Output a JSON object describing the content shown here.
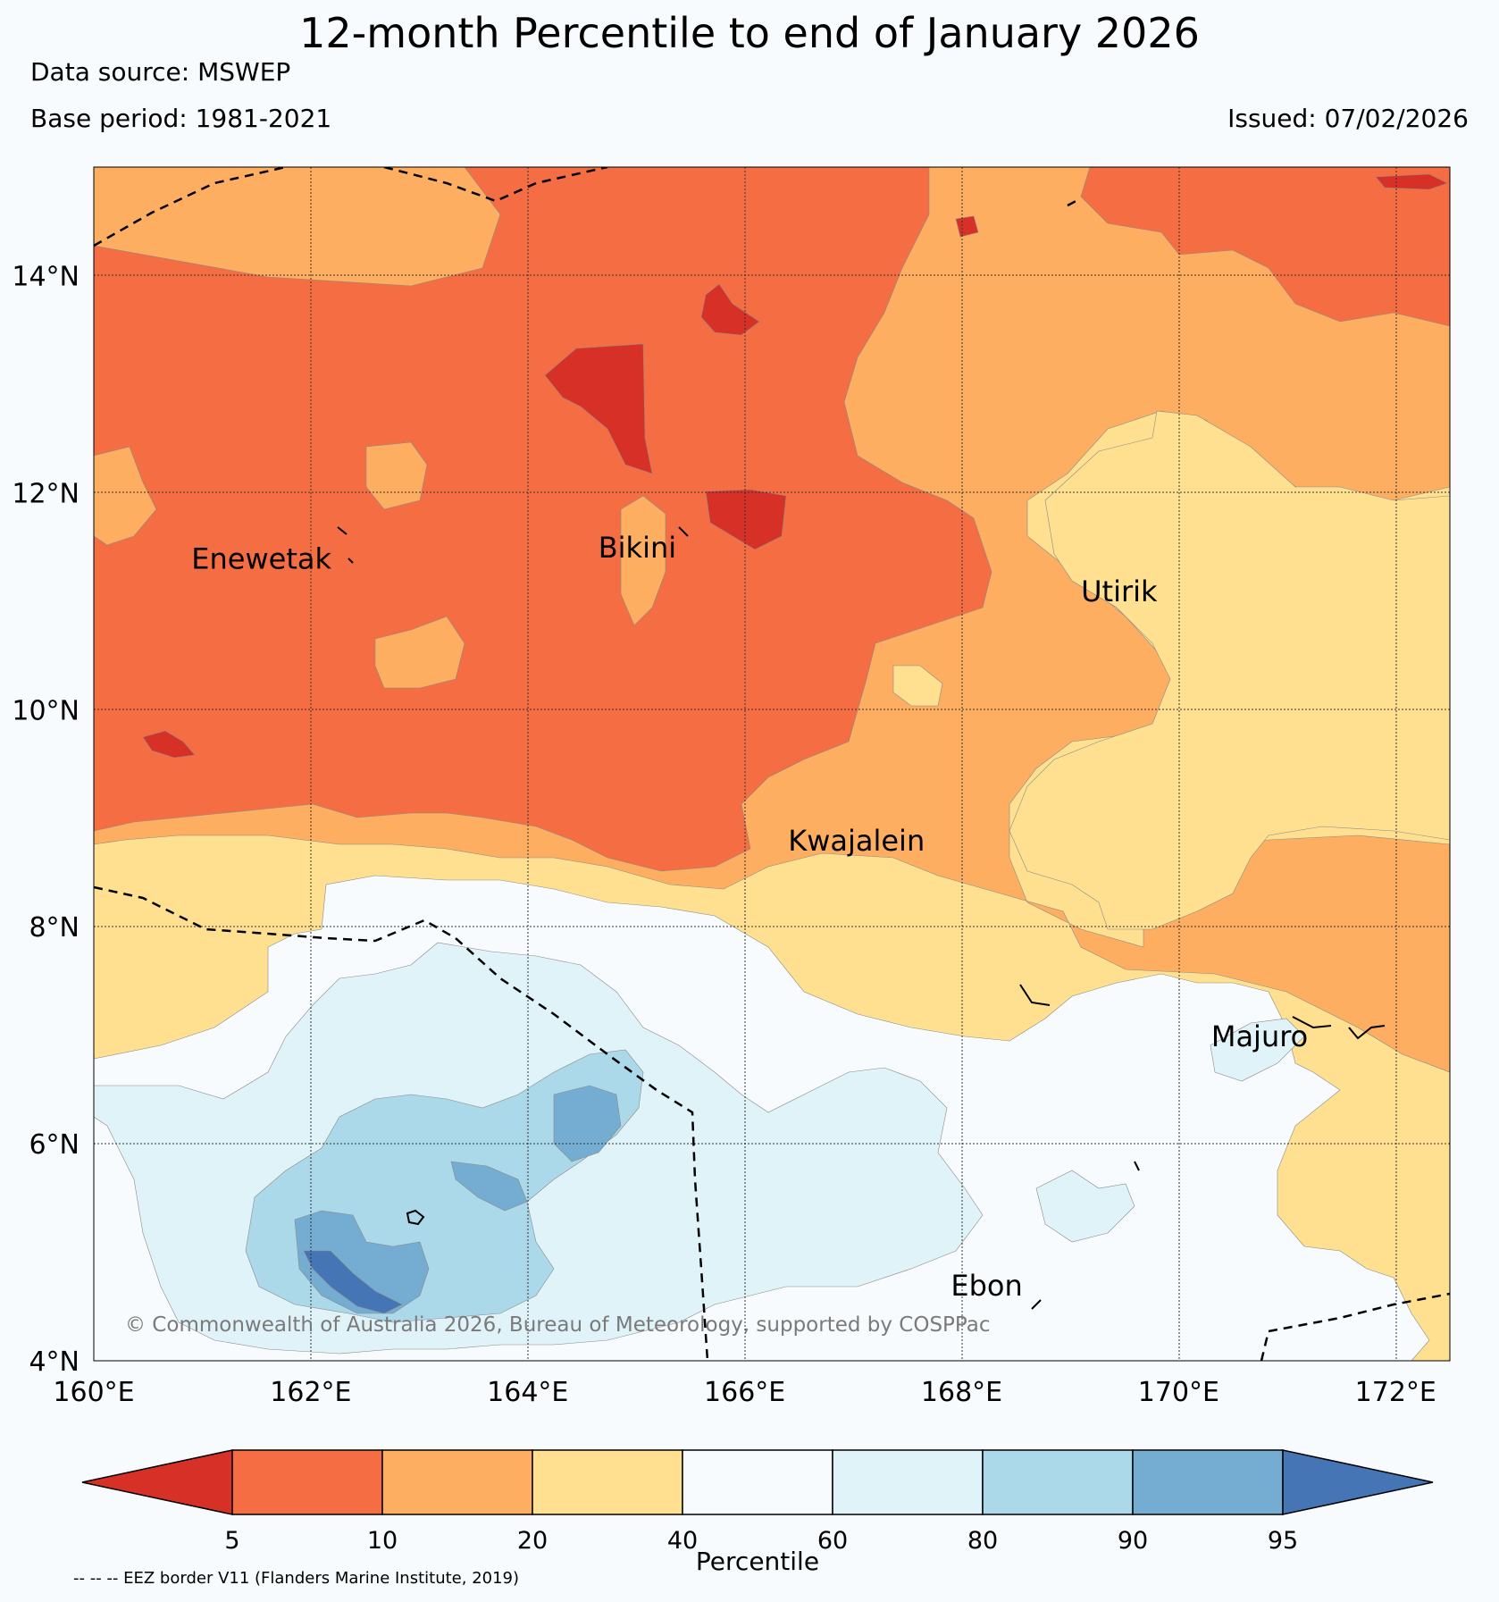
{
  "header": {
    "title": "12-month Percentile to end of January 2026",
    "source": "Data source: MSWEP",
    "base_period": "Base period: 1981-2021",
    "issued": "Issued: 07/02/2026"
  },
  "map": {
    "lon_range": [
      160,
      172.5
    ],
    "lat_range": [
      4,
      15
    ],
    "lon_ticks": [
      {
        "lon": 160,
        "label": "160°E"
      },
      {
        "lon": 162,
        "label": "162°E"
      },
      {
        "lon": 164,
        "label": "164°E"
      },
      {
        "lon": 166,
        "label": "166°E"
      },
      {
        "lon": 168,
        "label": "168°E"
      },
      {
        "lon": 170,
        "label": "170°E"
      },
      {
        "lon": 172,
        "label": "172°E"
      }
    ],
    "lat_ticks": [
      {
        "lat": 4,
        "label": "4°N"
      },
      {
        "lat": 6,
        "label": "6°N"
      },
      {
        "lat": 8,
        "label": "8°N"
      },
      {
        "lat": 10,
        "label": "10°N"
      },
      {
        "lat": 12,
        "label": "12°N"
      },
      {
        "lat": 14,
        "label": "14°N"
      }
    ],
    "places": [
      {
        "name": "Enewetak",
        "lon": 160.9,
        "lat": 11.3
      },
      {
        "name": "Bikini",
        "lon": 164.65,
        "lat": 11.4
      },
      {
        "name": "Utirik",
        "lon": 169.1,
        "lat": 11.0
      },
      {
        "name": "Kwajalein",
        "lon": 166.4,
        "lat": 8.7
      },
      {
        "name": "Majuro",
        "lon": 170.3,
        "lat": 6.9
      },
      {
        "name": "Ebon",
        "lon": 167.9,
        "lat": 4.6
      }
    ],
    "copyright": "© Commonwealth of Australia 2026, Bureau of Meteorology, supported by COSPPac"
  },
  "colorbar": {
    "label": "Percentile",
    "boundaries": [
      "5",
      "10",
      "20",
      "40",
      "60",
      "80",
      "90",
      "95"
    ],
    "colors": [
      "#d73027",
      "#f46d43",
      "#fdae61",
      "#fee090",
      "#f7fbfd",
      "#e0f3f8",
      "#abd9e9",
      "#74add1",
      "#4575b4"
    ]
  },
  "footnote": "-- -- -- EEZ border V11 (Flanders Marine Institute, 2019)"
}
